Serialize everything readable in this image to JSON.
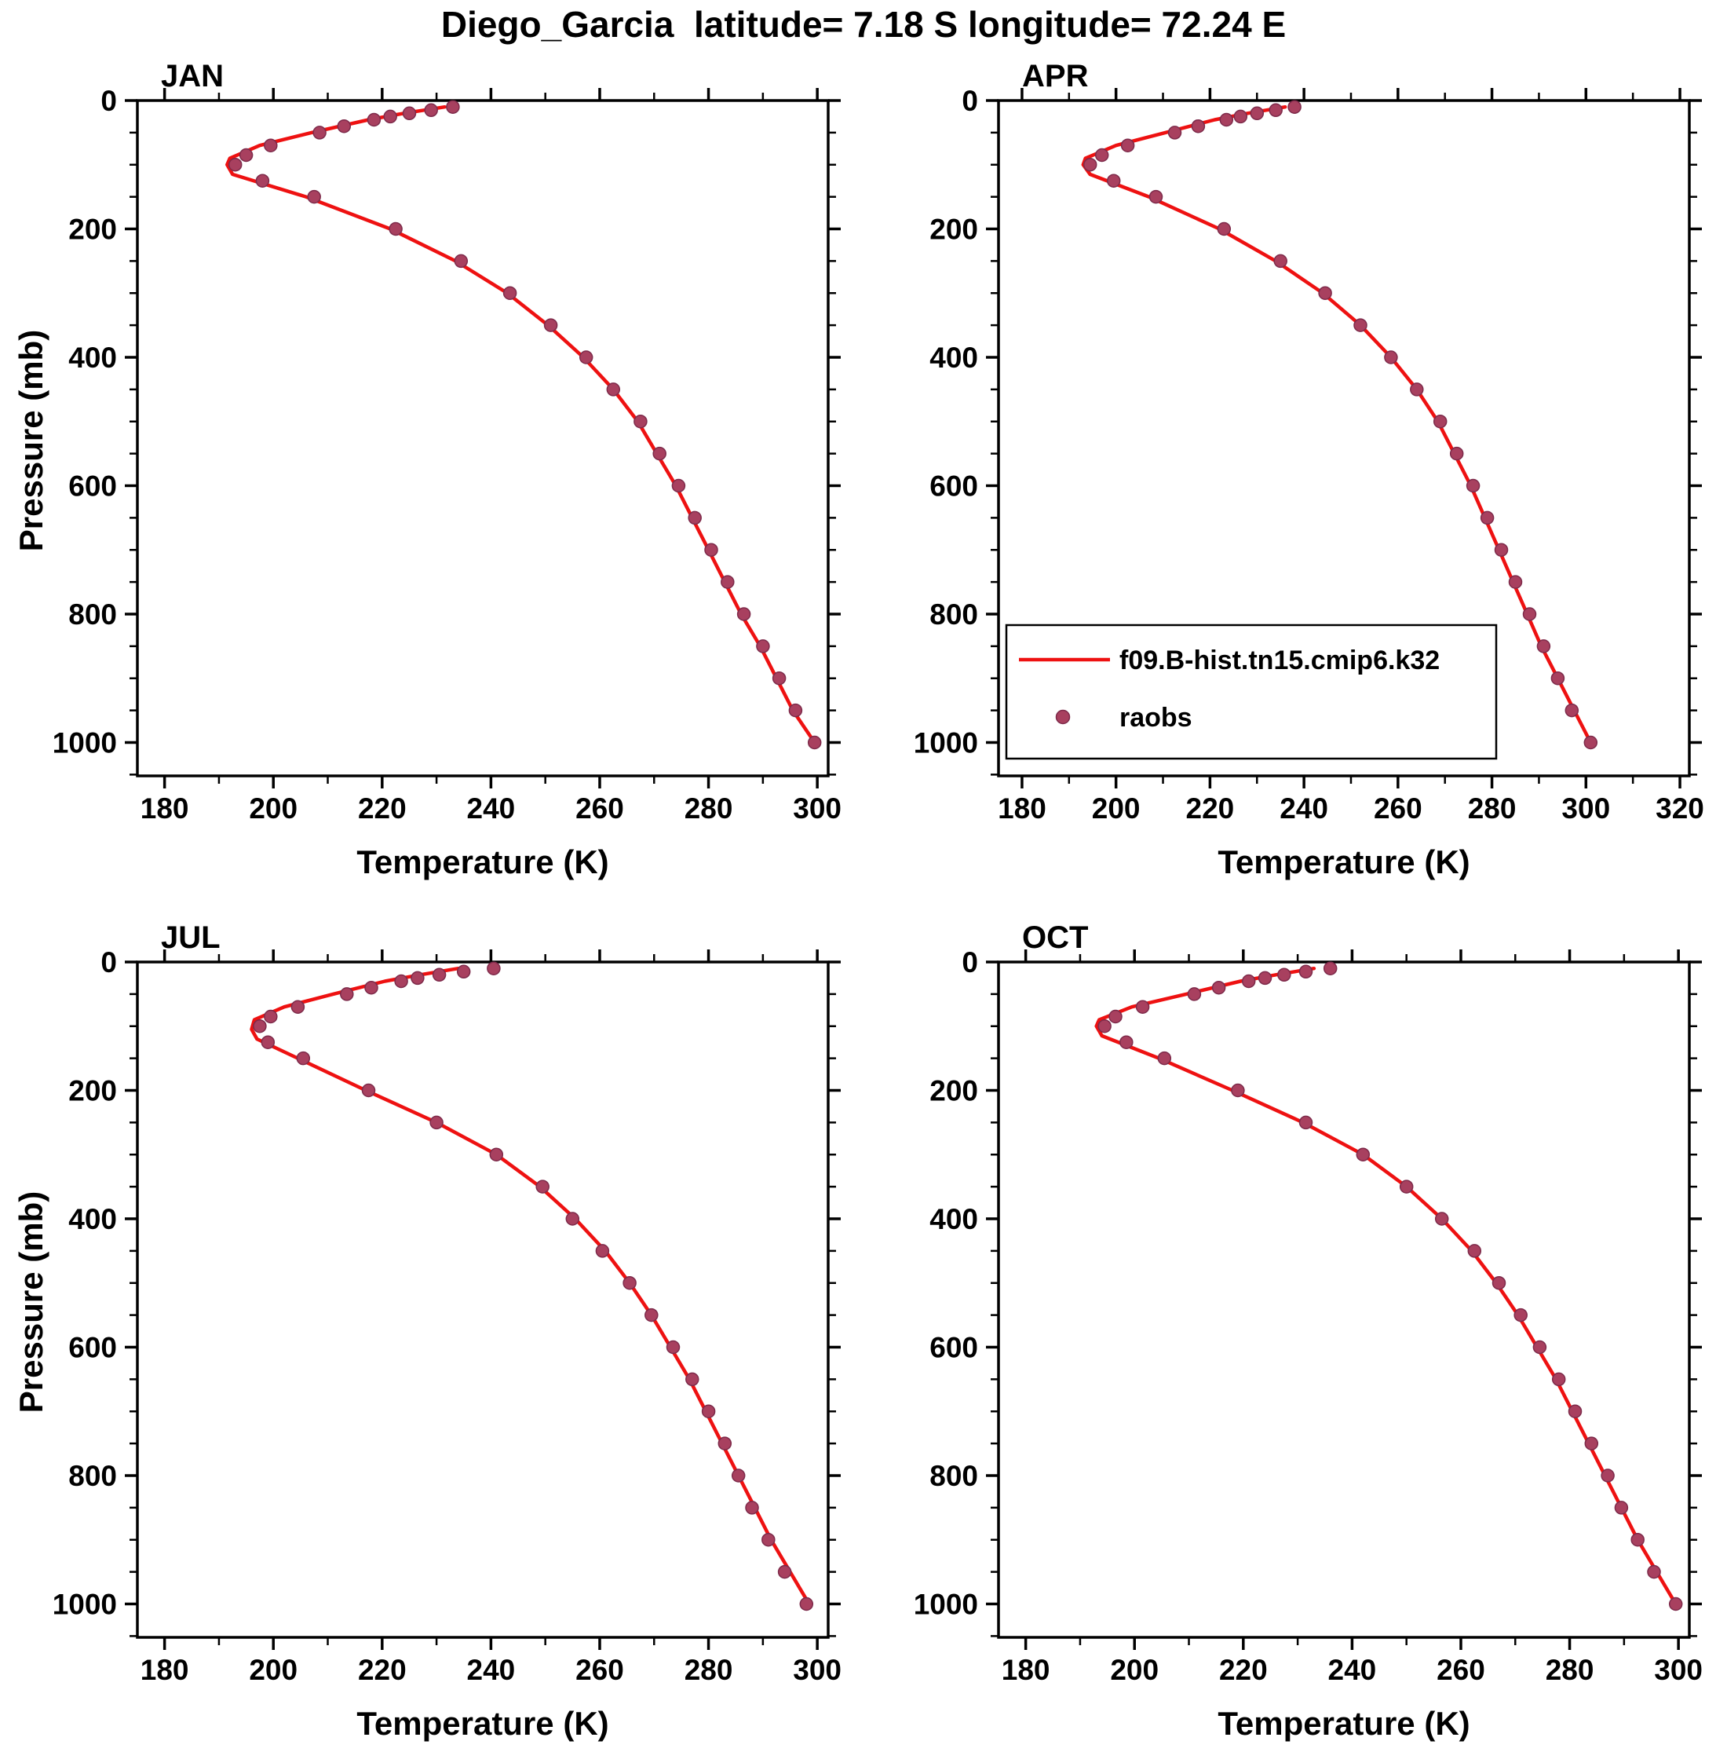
{
  "title": "Diego_Garcia  latitude= 7.18 S longitude= 72.24 E",
  "ylabel": "Pressure (mb)",
  "legend": {
    "line_label": "f09.B-hist.tn15.cmip6.k32",
    "dot_label": "raobs"
  },
  "colors": {
    "line": "#ee1111",
    "dot": "#a8405f",
    "dot_edge": "#7d2a4a",
    "axis": "#000000"
  },
  "chart_data": [
    {
      "type": "line",
      "panel": "JAN",
      "xlabel": "Temperature (K)",
      "ylabel": "Pressure (mb)",
      "xlim": [
        175,
        302
      ],
      "xticks": [
        180,
        200,
        220,
        240,
        260,
        280,
        300
      ],
      "x_minor_step": 10,
      "ylim": [
        0,
        1052
      ],
      "yticks": [
        0,
        200,
        400,
        600,
        800,
        1000
      ],
      "y_minor_step": 50,
      "show_legend": false,
      "series": [
        {
          "name": "f09.B-hist.tn15.cmip6.k32",
          "style": "line",
          "pressure": [
            10,
            20,
            30,
            50,
            70,
            90,
            100,
            115,
            150,
            200,
            250,
            300,
            350,
            400,
            450,
            500,
            550,
            600,
            650,
            700,
            750,
            800,
            850,
            900,
            950,
            1000
          ],
          "temperature": [
            231.5,
            224,
            217.5,
            207,
            197.5,
            192,
            191.5,
            192.5,
            206,
            221.5,
            233.5,
            243,
            250.5,
            257,
            262.5,
            267,
            270.5,
            274,
            277,
            280,
            283,
            286,
            289.5,
            292.5,
            295.5,
            299.5
          ]
        },
        {
          "name": "raobs",
          "style": "dots",
          "pressure": [
            10,
            15,
            20,
            25,
            30,
            40,
            50,
            70,
            85,
            100,
            125,
            150,
            200,
            250,
            300,
            350,
            400,
            450,
            500,
            550,
            600,
            650,
            700,
            750,
            800,
            850,
            900,
            950,
            1000
          ],
          "temperature": [
            233,
            229,
            225,
            221.5,
            218.5,
            213,
            208.5,
            199.5,
            195,
            193,
            198,
            207.5,
            222.5,
            234.5,
            243.5,
            251,
            257.5,
            262.5,
            267.5,
            271,
            274.5,
            277.5,
            280.5,
            283.5,
            286.5,
            290,
            293,
            296,
            299.5
          ]
        }
      ]
    },
    {
      "type": "line",
      "panel": "APR",
      "xlabel": "Temperature (K)",
      "ylabel": "Pressure (mb)",
      "xlim": [
        175,
        322
      ],
      "xticks": [
        180,
        200,
        220,
        240,
        260,
        280,
        300,
        320
      ],
      "x_minor_step": 10,
      "ylim": [
        0,
        1052
      ],
      "yticks": [
        0,
        200,
        400,
        600,
        800,
        1000
      ],
      "y_minor_step": 50,
      "show_legend": true,
      "series": [
        {
          "name": "f09.B-hist.tn15.cmip6.k32",
          "style": "line",
          "pressure": [
            10,
            20,
            30,
            50,
            70,
            90,
            100,
            115,
            150,
            200,
            250,
            300,
            350,
            400,
            450,
            500,
            550,
            600,
            650,
            700,
            750,
            800,
            850,
            900,
            950,
            1000
          ],
          "temperature": [
            236,
            228,
            221,
            210.5,
            200,
            193.5,
            193,
            194.5,
            207,
            222,
            234,
            244,
            252,
            258.5,
            264,
            268.5,
            272,
            275.5,
            278.5,
            281.5,
            284.5,
            287.5,
            290.5,
            294,
            297.5,
            301
          ]
        },
        {
          "name": "raobs",
          "style": "dots",
          "pressure": [
            10,
            15,
            20,
            25,
            30,
            40,
            50,
            70,
            85,
            100,
            125,
            150,
            200,
            250,
            300,
            350,
            400,
            450,
            500,
            550,
            600,
            650,
            700,
            750,
            800,
            850,
            900,
            950,
            1000
          ],
          "temperature": [
            238,
            234,
            230,
            226.5,
            223.5,
            217.5,
            212.5,
            202.5,
            197,
            194.5,
            199.5,
            208.5,
            223,
            235,
            244.5,
            252,
            258.5,
            264,
            269,
            272.5,
            276,
            279,
            282,
            285,
            288,
            291,
            294,
            297,
            301
          ]
        }
      ]
    },
    {
      "type": "line",
      "panel": "JUL",
      "xlabel": "Temperature (K)",
      "ylabel": "Pressure (mb)",
      "xlim": [
        175,
        302
      ],
      "xticks": [
        180,
        200,
        220,
        240,
        260,
        280,
        300
      ],
      "x_minor_step": 10,
      "ylim": [
        0,
        1052
      ],
      "yticks": [
        0,
        200,
        400,
        600,
        800,
        1000
      ],
      "y_minor_step": 50,
      "show_legend": false,
      "series": [
        {
          "name": "f09.B-hist.tn15.cmip6.k32",
          "style": "line",
          "pressure": [
            10,
            20,
            30,
            50,
            70,
            90,
            105,
            120,
            150,
            200,
            250,
            300,
            350,
            400,
            450,
            500,
            550,
            600,
            650,
            700,
            750,
            800,
            850,
            900,
            950,
            1000
          ],
          "temperature": [
            234,
            227,
            220.5,
            211,
            202,
            196.5,
            196,
            197,
            204.5,
            217,
            230,
            241,
            249,
            255.5,
            261,
            265.5,
            269.5,
            273,
            276.5,
            279.5,
            282.5,
            285.5,
            288.5,
            291.5,
            295,
            298.5
          ]
        },
        {
          "name": "raobs",
          "style": "dots",
          "pressure": [
            10,
            15,
            20,
            25,
            30,
            40,
            50,
            70,
            85,
            100,
            125,
            150,
            200,
            250,
            300,
            350,
            400,
            450,
            500,
            550,
            600,
            650,
            700,
            750,
            800,
            850,
            900,
            950,
            1000
          ],
          "temperature": [
            240.5,
            235,
            230.5,
            226.5,
            223.5,
            218,
            213.5,
            204.5,
            199.5,
            197.5,
            199,
            205.5,
            217.5,
            230,
            241,
            249.5,
            255,
            260.5,
            265.5,
            269.5,
            273.5,
            277,
            280,
            283,
            285.5,
            288,
            291,
            294,
            298
          ]
        }
      ]
    },
    {
      "type": "line",
      "panel": "OCT",
      "xlabel": "Temperature (K)",
      "ylabel": "Pressure (mb)",
      "xlim": [
        175,
        302
      ],
      "xticks": [
        180,
        200,
        220,
        240,
        260,
        280,
        300
      ],
      "x_minor_step": 10,
      "ylim": [
        0,
        1052
      ],
      "yticks": [
        0,
        200,
        400,
        600,
        800,
        1000
      ],
      "y_minor_step": 50,
      "show_legend": false,
      "series": [
        {
          "name": "f09.B-hist.tn15.cmip6.k32",
          "style": "line",
          "pressure": [
            10,
            20,
            30,
            50,
            70,
            90,
            100,
            115,
            150,
            200,
            250,
            300,
            350,
            400,
            450,
            500,
            550,
            600,
            650,
            700,
            750,
            800,
            850,
            900,
            950,
            1000
          ],
          "temperature": [
            233,
            226,
            219.5,
            209.5,
            199.5,
            193.5,
            193,
            194,
            204.5,
            218,
            231,
            242,
            250,
            256.5,
            262,
            266.5,
            270.5,
            274,
            277.5,
            280.5,
            283.5,
            286.5,
            289.5,
            292.5,
            296,
            299.5
          ]
        },
        {
          "name": "raobs",
          "style": "dots",
          "pressure": [
            10,
            15,
            20,
            25,
            30,
            40,
            50,
            70,
            85,
            100,
            125,
            150,
            200,
            250,
            300,
            350,
            400,
            450,
            500,
            550,
            600,
            650,
            700,
            750,
            800,
            850,
            900,
            950,
            1000
          ],
          "temperature": [
            236,
            231.5,
            227.5,
            224,
            221,
            215.5,
            211,
            201.5,
            196.5,
            194.5,
            198.5,
            205.5,
            219,
            231.5,
            242,
            250,
            256.5,
            262.5,
            267,
            271,
            274.5,
            278,
            281,
            284,
            287,
            289.5,
            292.5,
            295.5,
            299.5
          ]
        }
      ]
    }
  ]
}
